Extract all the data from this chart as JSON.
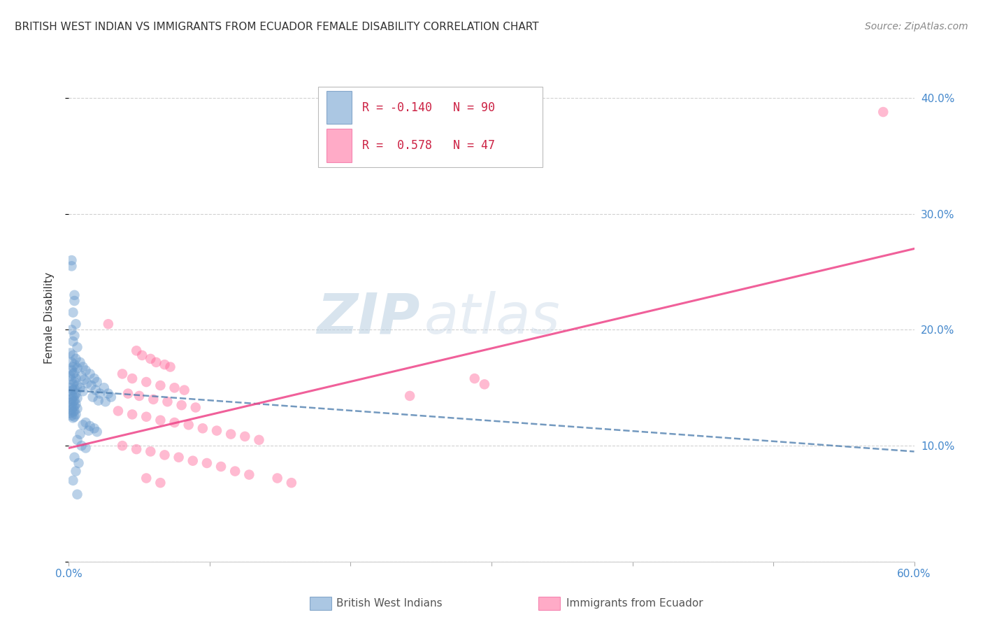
{
  "title": "BRITISH WEST INDIAN VS IMMIGRANTS FROM ECUADOR FEMALE DISABILITY CORRELATION CHART",
  "source": "Source: ZipAtlas.com",
  "ylabel": "Female Disability",
  "xlim": [
    0.0,
    0.6
  ],
  "ylim": [
    0.0,
    0.42
  ],
  "xticks": [
    0.0,
    0.1,
    0.2,
    0.3,
    0.4,
    0.5,
    0.6
  ],
  "yticks": [
    0.0,
    0.1,
    0.2,
    0.3,
    0.4
  ],
  "ytick_labels_right": [
    "",
    "10.0%",
    "20.0%",
    "30.0%",
    "40.0%"
  ],
  "xtick_labels": [
    "0.0%",
    "",
    "",
    "",
    "",
    "",
    "60.0%"
  ],
  "grid_color": "#cccccc",
  "background_color": "#ffffff",
  "legend_R1": "-0.140",
  "legend_N1": "90",
  "legend_R2": "0.578",
  "legend_N2": "47",
  "blue_color": "#6699cc",
  "pink_color": "#ff6699",
  "blue_line_color": "#4477aa",
  "pink_line_color": "#ee4488",
  "blue_scatter": [
    [
      0.002,
      0.255
    ],
    [
      0.004,
      0.23
    ],
    [
      0.003,
      0.215
    ],
    [
      0.005,
      0.205
    ],
    [
      0.002,
      0.2
    ],
    [
      0.004,
      0.195
    ],
    [
      0.003,
      0.19
    ],
    [
      0.006,
      0.185
    ],
    [
      0.001,
      0.18
    ],
    [
      0.003,
      0.178
    ],
    [
      0.005,
      0.175
    ],
    [
      0.002,
      0.172
    ],
    [
      0.004,
      0.17
    ],
    [
      0.003,
      0.168
    ],
    [
      0.006,
      0.167
    ],
    [
      0.002,
      0.165
    ],
    [
      0.004,
      0.163
    ],
    [
      0.003,
      0.162
    ],
    [
      0.001,
      0.16
    ],
    [
      0.005,
      0.158
    ],
    [
      0.002,
      0.157
    ],
    [
      0.004,
      0.155
    ],
    [
      0.003,
      0.153
    ],
    [
      0.006,
      0.152
    ],
    [
      0.002,
      0.15
    ],
    [
      0.004,
      0.149
    ],
    [
      0.003,
      0.148
    ],
    [
      0.001,
      0.147
    ],
    [
      0.005,
      0.145
    ],
    [
      0.002,
      0.144
    ],
    [
      0.004,
      0.143
    ],
    [
      0.003,
      0.142
    ],
    [
      0.006,
      0.141
    ],
    [
      0.002,
      0.14
    ],
    [
      0.004,
      0.139
    ],
    [
      0.003,
      0.138
    ],
    [
      0.001,
      0.137
    ],
    [
      0.005,
      0.136
    ],
    [
      0.002,
      0.135
    ],
    [
      0.004,
      0.134
    ],
    [
      0.003,
      0.133
    ],
    [
      0.006,
      0.132
    ],
    [
      0.002,
      0.131
    ],
    [
      0.004,
      0.13
    ],
    [
      0.003,
      0.129
    ],
    [
      0.001,
      0.128
    ],
    [
      0.005,
      0.127
    ],
    [
      0.002,
      0.126
    ],
    [
      0.004,
      0.125
    ],
    [
      0.003,
      0.124
    ],
    [
      0.008,
      0.172
    ],
    [
      0.01,
      0.168
    ],
    [
      0.012,
      0.165
    ],
    [
      0.009,
      0.16
    ],
    [
      0.011,
      0.157
    ],
    [
      0.013,
      0.154
    ],
    [
      0.008,
      0.15
    ],
    [
      0.01,
      0.147
    ],
    [
      0.015,
      0.162
    ],
    [
      0.018,
      0.158
    ],
    [
      0.02,
      0.155
    ],
    [
      0.016,
      0.152
    ],
    [
      0.019,
      0.148
    ],
    [
      0.022,
      0.145
    ],
    [
      0.017,
      0.142
    ],
    [
      0.021,
      0.139
    ],
    [
      0.025,
      0.15
    ],
    [
      0.028,
      0.145
    ],
    [
      0.03,
      0.142
    ],
    [
      0.026,
      0.138
    ],
    [
      0.012,
      0.12
    ],
    [
      0.015,
      0.117
    ],
    [
      0.018,
      0.115
    ],
    [
      0.02,
      0.112
    ],
    [
      0.01,
      0.118
    ],
    [
      0.014,
      0.113
    ],
    [
      0.008,
      0.11
    ],
    [
      0.006,
      0.105
    ],
    [
      0.009,
      0.1
    ],
    [
      0.012,
      0.098
    ],
    [
      0.004,
      0.09
    ],
    [
      0.007,
      0.085
    ],
    [
      0.005,
      0.078
    ],
    [
      0.003,
      0.07
    ],
    [
      0.006,
      0.058
    ],
    [
      0.002,
      0.26
    ],
    [
      0.004,
      0.225
    ]
  ],
  "pink_scatter": [
    [
      0.028,
      0.205
    ],
    [
      0.048,
      0.182
    ],
    [
      0.052,
      0.178
    ],
    [
      0.058,
      0.175
    ],
    [
      0.062,
      0.172
    ],
    [
      0.068,
      0.17
    ],
    [
      0.072,
      0.168
    ],
    [
      0.038,
      0.162
    ],
    [
      0.045,
      0.158
    ],
    [
      0.055,
      0.155
    ],
    [
      0.065,
      0.152
    ],
    [
      0.075,
      0.15
    ],
    [
      0.082,
      0.148
    ],
    [
      0.042,
      0.145
    ],
    [
      0.05,
      0.143
    ],
    [
      0.06,
      0.14
    ],
    [
      0.07,
      0.138
    ],
    [
      0.08,
      0.135
    ],
    [
      0.09,
      0.133
    ],
    [
      0.035,
      0.13
    ],
    [
      0.045,
      0.127
    ],
    [
      0.055,
      0.125
    ],
    [
      0.065,
      0.122
    ],
    [
      0.075,
      0.12
    ],
    [
      0.085,
      0.118
    ],
    [
      0.095,
      0.115
    ],
    [
      0.105,
      0.113
    ],
    [
      0.115,
      0.11
    ],
    [
      0.125,
      0.108
    ],
    [
      0.135,
      0.105
    ],
    [
      0.038,
      0.1
    ],
    [
      0.048,
      0.097
    ],
    [
      0.058,
      0.095
    ],
    [
      0.068,
      0.092
    ],
    [
      0.078,
      0.09
    ],
    [
      0.088,
      0.087
    ],
    [
      0.098,
      0.085
    ],
    [
      0.108,
      0.082
    ],
    [
      0.055,
      0.072
    ],
    [
      0.065,
      0.068
    ],
    [
      0.118,
      0.078
    ],
    [
      0.128,
      0.075
    ],
    [
      0.148,
      0.072
    ],
    [
      0.158,
      0.068
    ],
    [
      0.242,
      0.143
    ],
    [
      0.288,
      0.158
    ],
    [
      0.295,
      0.153
    ],
    [
      0.578,
      0.388
    ]
  ],
  "blue_line_x": [
    0.0,
    0.6
  ],
  "blue_line_y": [
    0.148,
    0.095
  ],
  "pink_line_x": [
    0.0,
    0.6
  ],
  "pink_line_y": [
    0.098,
    0.27
  ]
}
